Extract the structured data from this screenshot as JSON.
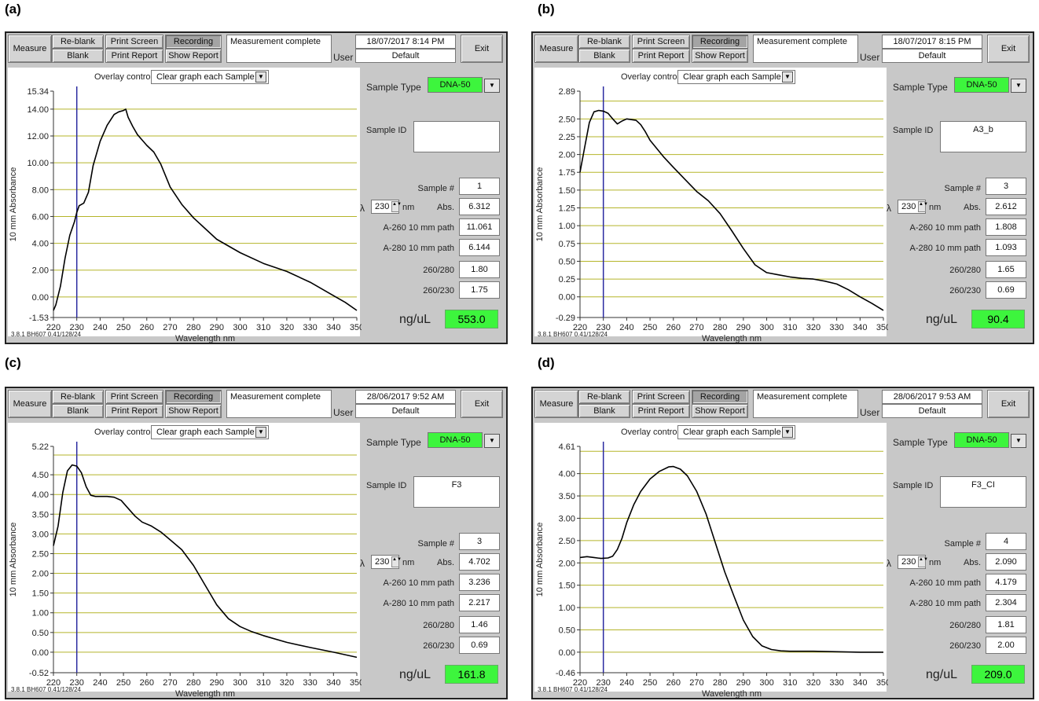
{
  "panels": [
    {
      "label": "(a)",
      "status": "Measurement complete",
      "datetime": "18/07/2017 8:14 PM",
      "user_label": "User",
      "user": "Default",
      "overlay_label": "Overlay control",
      "overlay_value": "Clear graph each Sample",
      "sample_type_label": "Sample Type",
      "sample_type": "DNA-50",
      "sample_id_label": "Sample ID",
      "sample_id": "",
      "sample_num_label": "Sample #",
      "sample_num": "1",
      "lambda_symbol": "λ",
      "lambda": "230",
      "nm": "nm",
      "abs_label": "Abs.",
      "abs": "6.312",
      "a260_label": "A-260 10 mm path",
      "a260": "11.061",
      "a280_label": "A-280 10 mm path",
      "a280": "6.144",
      "r260_280_label": "260/280",
      "r260_280": "1.80",
      "r260_230_label": "260/230",
      "r260_230": "1.75",
      "ngul_label": "ng/uL",
      "ngul": "553.0",
      "version": "3.8.1 BH607 0.41/128/24",
      "buttons": {
        "measure": "Measure",
        "reblank": "Re-blank",
        "blank": "Blank",
        "print_screen": "Print Screen",
        "print_report": "Print Report",
        "recording": "Recording",
        "show_report": "Show Report",
        "exit": "Exit"
      }
    },
    {
      "label": "(b)",
      "status": "Measurement complete",
      "datetime": "18/07/2017 8:15 PM",
      "user_label": "User",
      "user": "Default",
      "overlay_label": "Overlay control",
      "overlay_value": "Clear graph each Sample",
      "sample_type_label": "Sample Type",
      "sample_type": "DNA-50",
      "sample_id_label": "Sample ID",
      "sample_id": "A3_b",
      "sample_num_label": "Sample #",
      "sample_num": "3",
      "lambda_symbol": "λ",
      "lambda": "230",
      "nm": "nm",
      "abs_label": "Abs.",
      "abs": "2.612",
      "a260_label": "A-260 10 mm path",
      "a260": "1.808",
      "a280_label": "A-280 10 mm path",
      "a280": "1.093",
      "r260_280_label": "260/280",
      "r260_280": "1.65",
      "r260_230_label": "260/230",
      "r260_230": "0.69",
      "ngul_label": "ng/uL",
      "ngul": "90.4",
      "version": "3.8.1 BH607 0.41/128/24",
      "buttons": {
        "measure": "Measure",
        "reblank": "Re-blank",
        "blank": "Blank",
        "print_screen": "Print Screen",
        "print_report": "Print Report",
        "recording": "Recording",
        "show_report": "Show Report",
        "exit": "Exit"
      }
    },
    {
      "label": "(c)",
      "status": "Measurement complete",
      "datetime": "28/06/2017 9:52 AM",
      "user_label": "User",
      "user": "Default",
      "overlay_label": "Overlay control",
      "overlay_value": "Clear graph each Sample",
      "sample_type_label": "Sample Type",
      "sample_type": "DNA-50",
      "sample_id_label": "Sample ID",
      "sample_id": "F3",
      "sample_num_label": "Sample #",
      "sample_num": "3",
      "lambda_symbol": "λ",
      "lambda": "230",
      "nm": "nm",
      "abs_label": "Abs.",
      "abs": "4.702",
      "a260_label": "A-260 10 mm path",
      "a260": "3.236",
      "a280_label": "A-280 10 mm path",
      "a280": "2.217",
      "r260_280_label": "260/280",
      "r260_280": "1.46",
      "r260_230_label": "260/230",
      "r260_230": "0.69",
      "ngul_label": "ng/uL",
      "ngul": "161.8",
      "version": "3.8.1 BH607 0.41/128/24",
      "buttons": {
        "measure": "Measure",
        "reblank": "Re-blank",
        "blank": "Blank",
        "print_screen": "Print Screen",
        "print_report": "Print Report",
        "recording": "Recording",
        "show_report": "Show Report",
        "exit": "Exit"
      }
    },
    {
      "label": "(d)",
      "status": "Measurement complete",
      "datetime": "28/06/2017 9:53 AM",
      "user_label": "User",
      "user": "Default",
      "overlay_label": "Overlay control",
      "overlay_value": "Clear graph each Sample",
      "sample_type_label": "Sample Type",
      "sample_type": "DNA-50",
      "sample_id_label": "Sample ID",
      "sample_id": "F3_CI",
      "sample_num_label": "Sample #",
      "sample_num": "4",
      "lambda_symbol": "λ",
      "lambda": "230",
      "nm": "nm",
      "abs_label": "Abs.",
      "abs": "2.090",
      "a260_label": "A-260 10 mm path",
      "a260": "4.179",
      "a280_label": "A-280 10 mm path",
      "a280": "2.304",
      "r260_280_label": "260/280",
      "r260_280": "1.81",
      "r260_230_label": "260/230",
      "r260_230": "2.00",
      "ngul_label": "ng/uL",
      "ngul": "209.0",
      "version": "3.8.1 BH607 0.41/128/24",
      "buttons": {
        "measure": "Measure",
        "reblank": "Re-blank",
        "blank": "Blank",
        "print_screen": "Print Screen",
        "print_report": "Print Report",
        "recording": "Recording",
        "show_report": "Show Report",
        "exit": "Exit"
      }
    }
  ],
  "colors": {
    "panel_bg": "#c8c8c8",
    "green": "#3df53d",
    "grid": "#b5b52a",
    "trace": "#000000",
    "marker": "#2a2aa0"
  },
  "chart_data": [
    {
      "type": "line",
      "xlabel": "Wavelength nm",
      "ylabel": "10 mm Absorbance",
      "xlim": [
        220,
        350
      ],
      "ylim": [
        -1.53,
        15.34
      ],
      "xticks": [
        220,
        230,
        240,
        250,
        260,
        270,
        280,
        290,
        300,
        310,
        320,
        330,
        340,
        350
      ],
      "yticks": [
        "15.34",
        "14.00",
        "12.00",
        "10.00",
        "8.00",
        "6.00",
        "4.00",
        "2.00",
        "0.00",
        "-1.53"
      ],
      "grid_y": [
        14,
        12,
        10,
        8,
        6,
        4,
        2,
        0
      ],
      "marker_x": 230,
      "x": [
        220,
        221,
        223,
        225,
        227,
        229,
        230,
        231,
        233,
        235,
        237,
        240,
        243,
        246,
        248,
        250,
        251,
        252,
        254,
        256,
        258,
        260,
        263,
        266,
        270,
        275,
        280,
        290,
        300,
        310,
        320,
        330,
        340,
        345,
        350
      ],
      "y": [
        -1.0,
        -0.6,
        0.8,
        2.9,
        4.6,
        5.6,
        6.3,
        6.8,
        7.0,
        7.8,
        9.8,
        11.6,
        12.8,
        13.6,
        13.8,
        13.9,
        14.0,
        13.4,
        12.7,
        12.1,
        11.7,
        11.3,
        10.8,
        9.9,
        8.2,
        6.9,
        5.9,
        4.3,
        3.3,
        2.5,
        1.9,
        1.1,
        0.1,
        -0.4,
        -1.0
      ]
    },
    {
      "type": "line",
      "xlabel": "Wavelength nm",
      "ylabel": "10 mm Absorbance",
      "xlim": [
        220,
        350
      ],
      "ylim": [
        -0.29,
        2.89
      ],
      "xticks": [
        220,
        230,
        240,
        250,
        260,
        270,
        280,
        290,
        300,
        310,
        320,
        330,
        340,
        350
      ],
      "yticks": [
        "2.89",
        "2.50",
        "2.25",
        "2.00",
        "1.75",
        "1.50",
        "1.25",
        "1.00",
        "0.75",
        "0.50",
        "0.25",
        "0.00",
        "-0.29"
      ],
      "grid_y": [
        2.75,
        2.5,
        2.25,
        2.0,
        1.75,
        1.5,
        1.25,
        1.0,
        0.75,
        0.5,
        0.25,
        0.0
      ],
      "marker_x": 230,
      "x": [
        220,
        222,
        224,
        226,
        228,
        230,
        232,
        234,
        236,
        238,
        240,
        242,
        244,
        246,
        248,
        250,
        253,
        256,
        260,
        265,
        270,
        275,
        280,
        285,
        290,
        295,
        300,
        305,
        310,
        315,
        320,
        325,
        330,
        335,
        340,
        345,
        350
      ],
      "y": [
        1.75,
        2.1,
        2.45,
        2.6,
        2.62,
        2.61,
        2.58,
        2.5,
        2.43,
        2.47,
        2.5,
        2.49,
        2.48,
        2.42,
        2.32,
        2.2,
        2.08,
        1.96,
        1.82,
        1.65,
        1.48,
        1.35,
        1.17,
        0.93,
        0.68,
        0.45,
        0.34,
        0.31,
        0.28,
        0.26,
        0.25,
        0.22,
        0.18,
        0.1,
        0.0,
        -0.09,
        -0.19
      ]
    },
    {
      "type": "line",
      "xlabel": "Wavelength nm",
      "ylabel": "10 mm Absorbance",
      "xlim": [
        220,
        350
      ],
      "ylim": [
        -0.52,
        5.22
      ],
      "xticks": [
        220,
        230,
        240,
        250,
        260,
        270,
        280,
        290,
        300,
        310,
        320,
        330,
        340,
        350
      ],
      "yticks": [
        "5.22",
        "4.50",
        "4.00",
        "3.50",
        "3.00",
        "2.50",
        "2.00",
        "1.50",
        "1.00",
        "0.50",
        "0.00",
        "-0.52"
      ],
      "grid_y": [
        5.0,
        4.5,
        4.0,
        3.5,
        3.0,
        2.5,
        2.0,
        1.5,
        1.0,
        0.5,
        0.0
      ],
      "marker_x": 230,
      "x": [
        220,
        222,
        224,
        226,
        228,
        230,
        232,
        234,
        236,
        238,
        240,
        243,
        246,
        249,
        252,
        255,
        258,
        262,
        266,
        270,
        275,
        280,
        285,
        290,
        295,
        300,
        305,
        310,
        320,
        330,
        340,
        350
      ],
      "y": [
        2.7,
        3.2,
        4.05,
        4.6,
        4.75,
        4.72,
        4.55,
        4.2,
        3.98,
        3.95,
        3.95,
        3.95,
        3.93,
        3.85,
        3.65,
        3.45,
        3.3,
        3.2,
        3.05,
        2.85,
        2.6,
        2.2,
        1.7,
        1.2,
        0.85,
        0.65,
        0.52,
        0.42,
        0.25,
        0.12,
        0.0,
        -0.13
      ]
    },
    {
      "type": "line",
      "xlabel": "Wavelength nm",
      "ylabel": "10 mm Absorbance",
      "xlim": [
        220,
        350
      ],
      "ylim": [
        -0.46,
        4.61
      ],
      "xticks": [
        220,
        230,
        240,
        250,
        260,
        270,
        280,
        290,
        300,
        310,
        320,
        330,
        340,
        350
      ],
      "yticks": [
        "4.61",
        "4.00",
        "3.50",
        "3.00",
        "2.50",
        "2.00",
        "1.50",
        "1.00",
        "0.50",
        "0.00",
        "-0.46"
      ],
      "grid_y": [
        4.5,
        4.0,
        3.5,
        3.0,
        2.5,
        2.0,
        1.5,
        1.0,
        0.5,
        0.0
      ],
      "marker_x": 230,
      "x": [
        220,
        223,
        226,
        229,
        232,
        234,
        236,
        238,
        240,
        243,
        246,
        250,
        254,
        258,
        260,
        263,
        266,
        270,
        274,
        278,
        282,
        286,
        290,
        294,
        298,
        302,
        306,
        310,
        320,
        330,
        340,
        350
      ],
      "y": [
        2.12,
        2.14,
        2.12,
        2.1,
        2.11,
        2.15,
        2.3,
        2.55,
        2.9,
        3.3,
        3.6,
        3.88,
        4.05,
        4.15,
        4.16,
        4.1,
        3.95,
        3.6,
        3.1,
        2.45,
        1.8,
        1.25,
        0.72,
        0.35,
        0.14,
        0.06,
        0.03,
        0.02,
        0.02,
        0.01,
        0.0,
        0.0
      ]
    }
  ]
}
